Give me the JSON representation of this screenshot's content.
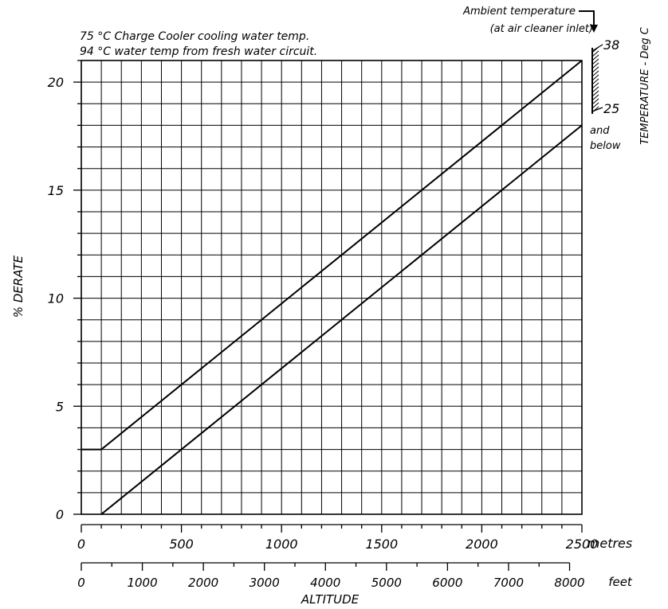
{
  "chart_data": {
    "type": "line",
    "notes": [
      "75 °C Charge Cooler cooling water temp.",
      "94 °C water temp from fresh water circuit."
    ],
    "ylabel": "% DERATE",
    "xlabel": "ALTITUDE",
    "x_unit_primary": "metres",
    "x_unit_secondary": "feet",
    "xlim": [
      0,
      2500
    ],
    "ylim": [
      0,
      20
    ],
    "x_ticks": [
      "0",
      "500",
      "1000",
      "1500",
      "2000",
      "2500"
    ],
    "x_tick_values": [
      0,
      500,
      1000,
      1500,
      2000,
      2500
    ],
    "feet_ticks": [
      "0",
      "1000",
      "2000",
      "3000",
      "4000",
      "5000",
      "6000",
      "7000",
      "8000"
    ],
    "feet_tick_values": [
      0,
      1000,
      2000,
      3000,
      4000,
      5000,
      6000,
      7000,
      8000
    ],
    "y_ticks": [
      "0",
      "5",
      "10",
      "15",
      "20"
    ],
    "y_tick_values": [
      0,
      5,
      10,
      15,
      20
    ],
    "grid": true,
    "series": [
      {
        "name": "38",
        "x": [
          0,
          100,
          2500
        ],
        "y": [
          3,
          3,
          21
        ]
      },
      {
        "name": "25",
        "x": [
          100,
          2500
        ],
        "y": [
          0,
          18
        ]
      }
    ],
    "temperature_scale": {
      "title": "TEMPERATURE - Deg C",
      "ambient_label_1": "Ambient temperature",
      "ambient_label_2": "(at air cleaner inlet)",
      "top_value": "38",
      "bottom_value": "25",
      "below_label_1": "and",
      "below_label_2": "below"
    }
  }
}
